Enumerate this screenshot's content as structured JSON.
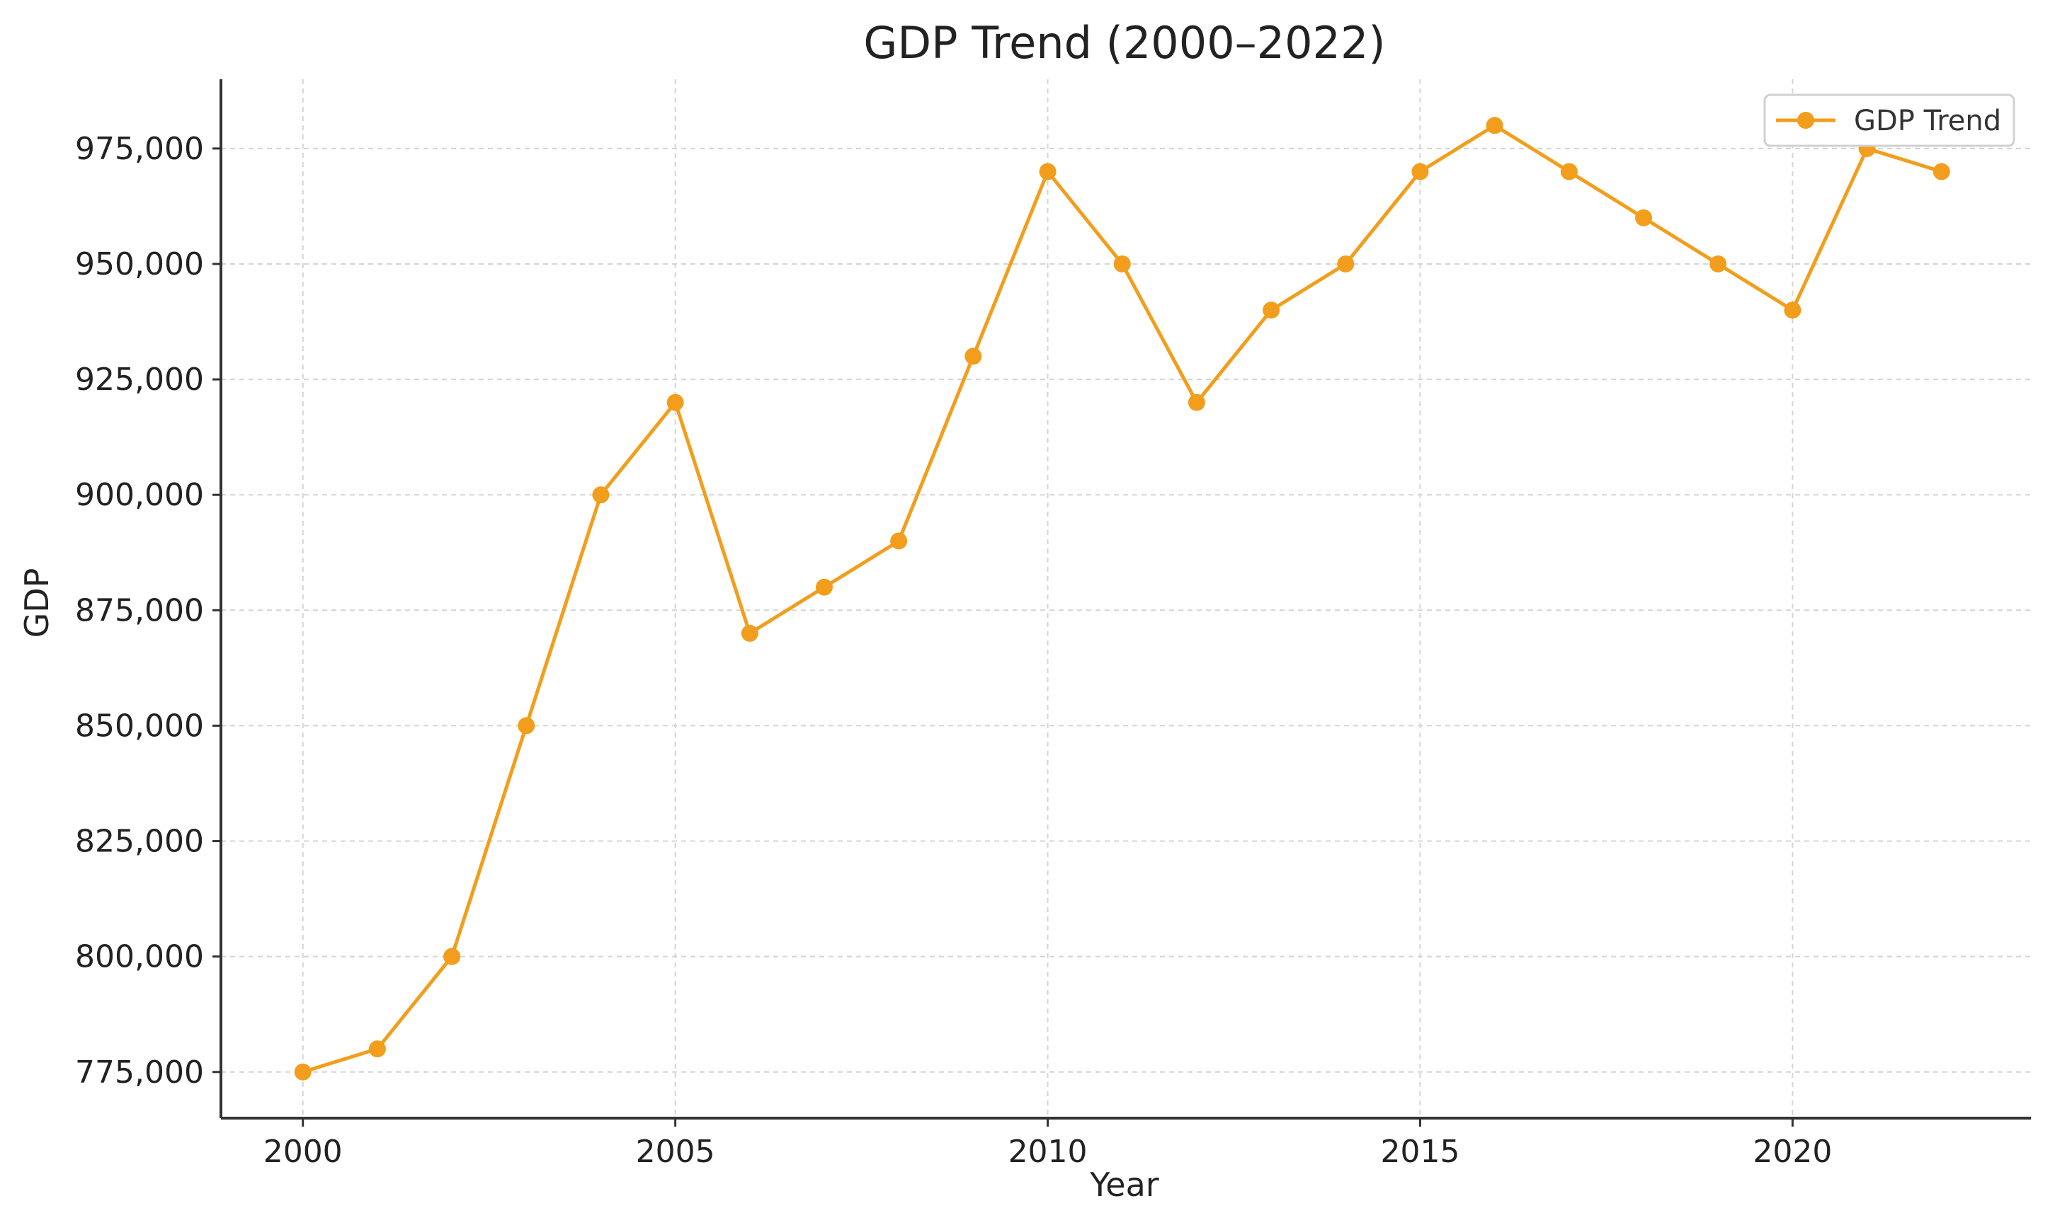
{
  "chart_data": {
    "type": "line",
    "title": "GDP Trend (2000–2022)",
    "xlabel": "Year",
    "ylabel": "GDP",
    "x": [
      2000,
      2001,
      2002,
      2003,
      2004,
      2005,
      2006,
      2007,
      2008,
      2009,
      2010,
      2011,
      2012,
      2013,
      2014,
      2015,
      2016,
      2017,
      2018,
      2019,
      2020,
      2021,
      2022
    ],
    "series": [
      {
        "name": "GDP Trend",
        "color": "#F29E1C",
        "marker": "circle",
        "values": [
          775000,
          780000,
          800000,
          850000,
          900000,
          920000,
          870000,
          880000,
          890000,
          930000,
          970000,
          950000,
          920000,
          940000,
          950000,
          970000,
          980000,
          970000,
          960000,
          950000,
          940000,
          975000,
          970000
        ]
      }
    ],
    "xlim": [
      1998.9,
      2023.2
    ],
    "ylim": [
      765000,
      990000
    ],
    "x_ticks": [
      2000,
      2005,
      2010,
      2015,
      2020
    ],
    "x_tick_labels": [
      "2000",
      "2005",
      "2010",
      "2015",
      "2020"
    ],
    "y_ticks": [
      775000,
      800000,
      825000,
      850000,
      875000,
      900000,
      925000,
      950000,
      975000
    ],
    "y_tick_labels": [
      "775,000",
      "800,000",
      "825,000",
      "850,000",
      "875,000",
      "900,000",
      "925,000",
      "950,000",
      "975,000"
    ],
    "grid": true,
    "grid_style": "dashed",
    "legend": {
      "position": "top-right",
      "entries": [
        "GDP Trend"
      ]
    }
  }
}
